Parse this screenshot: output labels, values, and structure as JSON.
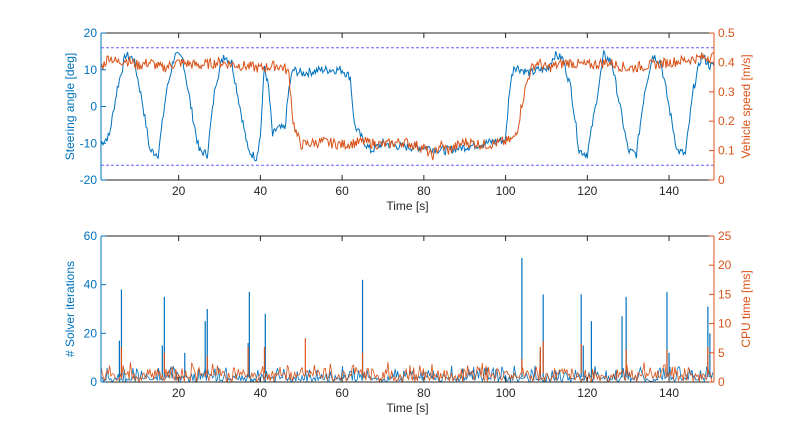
{
  "colors": {
    "blue": "#0072BD",
    "orange": "#D95319",
    "limit": "#6666ff",
    "axis": "#262626"
  },
  "chart_data": [
    {
      "type": "line",
      "title": "",
      "xlabel": "Time [s]",
      "ylabel_left": "Steering angle [deg]",
      "ylabel_right": "Vehicle speed [m/s]",
      "xlim": [
        1,
        151
      ],
      "ylim_left": [
        -20,
        20
      ],
      "ylim_right": [
        0,
        0.5
      ],
      "x_ticks": [
        "20",
        "40",
        "60",
        "80",
        "100",
        "120",
        "140"
      ],
      "y_ticks_left": [
        "-20",
        "-10",
        "0",
        "10",
        "20"
      ],
      "y_ticks_right": [
        "0",
        "0.1",
        "0.2",
        "0.3",
        "0.4",
        "0.5"
      ],
      "limit_lines_left": [
        16,
        -16
      ],
      "series": [
        {
          "name": "Steering angle",
          "axis": "left",
          "x": [
            1,
            3,
            5,
            7,
            9,
            11,
            13,
            15,
            17,
            19,
            21,
            23,
            25,
            27,
            29,
            31,
            33,
            35,
            37,
            39,
            40,
            41,
            42,
            43,
            44,
            46,
            47,
            48,
            50,
            55,
            60,
            62,
            63,
            65,
            67,
            70,
            75,
            80,
            85,
            90,
            95,
            100,
            101,
            102,
            104,
            106,
            108,
            110,
            112,
            114,
            116,
            118,
            120,
            122,
            124,
            126,
            128,
            130,
            132,
            134,
            136,
            138,
            140,
            142,
            144,
            146,
            148,
            150
          ],
          "values": [
            -10,
            -8,
            5,
            14,
            13,
            2,
            -12,
            -13,
            4,
            14,
            13,
            0,
            -12,
            -13,
            6,
            14,
            12,
            0,
            -12,
            -14,
            -8,
            11,
            5,
            -8,
            -6,
            -6,
            5,
            10,
            9,
            10,
            10,
            8,
            -5,
            -9,
            -12,
            -10,
            -11,
            -11,
            -12,
            -11,
            -10,
            -9,
            5,
            11,
            10,
            9,
            10,
            10,
            14,
            13,
            5,
            -12,
            -13,
            0,
            14,
            12,
            0,
            -12,
            -13,
            4,
            14,
            12,
            0,
            -12,
            -13,
            5,
            14,
            11
          ]
        },
        {
          "name": "Vehicle speed",
          "axis": "right",
          "x": [
            1,
            3,
            5,
            7,
            10,
            13,
            16,
            20,
            25,
            30,
            35,
            40,
            44,
            46,
            47,
            48,
            49,
            50,
            55,
            60,
            65,
            70,
            75,
            80,
            82,
            84,
            86,
            90,
            95,
            100,
            102,
            103,
            104,
            105,
            106,
            107,
            108,
            110,
            115,
            120,
            125,
            130,
            135,
            140,
            145,
            150
          ],
          "values": [
            0.38,
            0.42,
            0.4,
            0.41,
            0.39,
            0.4,
            0.38,
            0.4,
            0.39,
            0.4,
            0.39,
            0.38,
            0.39,
            0.38,
            0.36,
            0.2,
            0.15,
            0.12,
            0.13,
            0.12,
            0.13,
            0.12,
            0.13,
            0.11,
            0.08,
            0.12,
            0.1,
            0.13,
            0.12,
            0.13,
            0.14,
            0.18,
            0.26,
            0.32,
            0.37,
            0.39,
            0.4,
            0.38,
            0.4,
            0.39,
            0.4,
            0.38,
            0.39,
            0.4,
            0.41,
            0.42
          ]
        }
      ]
    },
    {
      "type": "line",
      "title": "",
      "xlabel": "Time [s]",
      "ylabel_left": "# Solver iterations",
      "ylabel_right": "CPU time [ms]",
      "xlim": [
        1,
        151
      ],
      "ylim_left": [
        0,
        60
      ],
      "ylim_right": [
        0,
        25
      ],
      "x_ticks": [
        "20",
        "40",
        "60",
        "80",
        "100",
        "120",
        "140"
      ],
      "y_ticks_left": [
        "0",
        "20",
        "40",
        "60"
      ],
      "y_ticks_right": [
        "0",
        "5",
        "10",
        "15",
        "20",
        "25"
      ],
      "limit_lines_right": [
        25
      ],
      "series": [
        {
          "name": "Solver iterations",
          "axis": "left",
          "baseline": 2,
          "spikes": [
            {
              "x": 6,
              "y": 38
            },
            {
              "x": 5.5,
              "y": 17
            },
            {
              "x": 16.5,
              "y": 35
            },
            {
              "x": 16,
              "y": 15
            },
            {
              "x": 21.5,
              "y": 12
            },
            {
              "x": 26.5,
              "y": 25
            },
            {
              "x": 27,
              "y": 30
            },
            {
              "x": 37.3,
              "y": 37
            },
            {
              "x": 37,
              "y": 16
            },
            {
              "x": 41.2,
              "y": 28
            },
            {
              "x": 65,
              "y": 42
            },
            {
              "x": 104,
              "y": 51
            },
            {
              "x": 108.5,
              "y": 13
            },
            {
              "x": 109.2,
              "y": 36
            },
            {
              "x": 118.5,
              "y": 36
            },
            {
              "x": 119,
              "y": 15
            },
            {
              "x": 121,
              "y": 25
            },
            {
              "x": 128.5,
              "y": 27
            },
            {
              "x": 129.5,
              "y": 35
            },
            {
              "x": 139.5,
              "y": 37
            },
            {
              "x": 140,
              "y": 12
            },
            {
              "x": 149.5,
              "y": 31
            },
            {
              "x": 150,
              "y": 20
            }
          ]
        },
        {
          "name": "CPU time",
          "axis": "right",
          "baseline": 1.5,
          "spikes": [
            {
              "x": 6,
              "y": 6
            },
            {
              "x": 16.5,
              "y": 5
            },
            {
              "x": 27,
              "y": 4.5
            },
            {
              "x": 37,
              "y": 6
            },
            {
              "x": 41,
              "y": 6
            },
            {
              "x": 51,
              "y": 7.5
            },
            {
              "x": 65,
              "y": 5
            },
            {
              "x": 104,
              "y": 4
            },
            {
              "x": 108.5,
              "y": 6
            },
            {
              "x": 109.2,
              "y": 7
            },
            {
              "x": 118.5,
              "y": 6.5
            },
            {
              "x": 129.5,
              "y": 5.5
            },
            {
              "x": 139.5,
              "y": 5.5
            },
            {
              "x": 149.5,
              "y": 6
            }
          ]
        }
      ]
    }
  ]
}
